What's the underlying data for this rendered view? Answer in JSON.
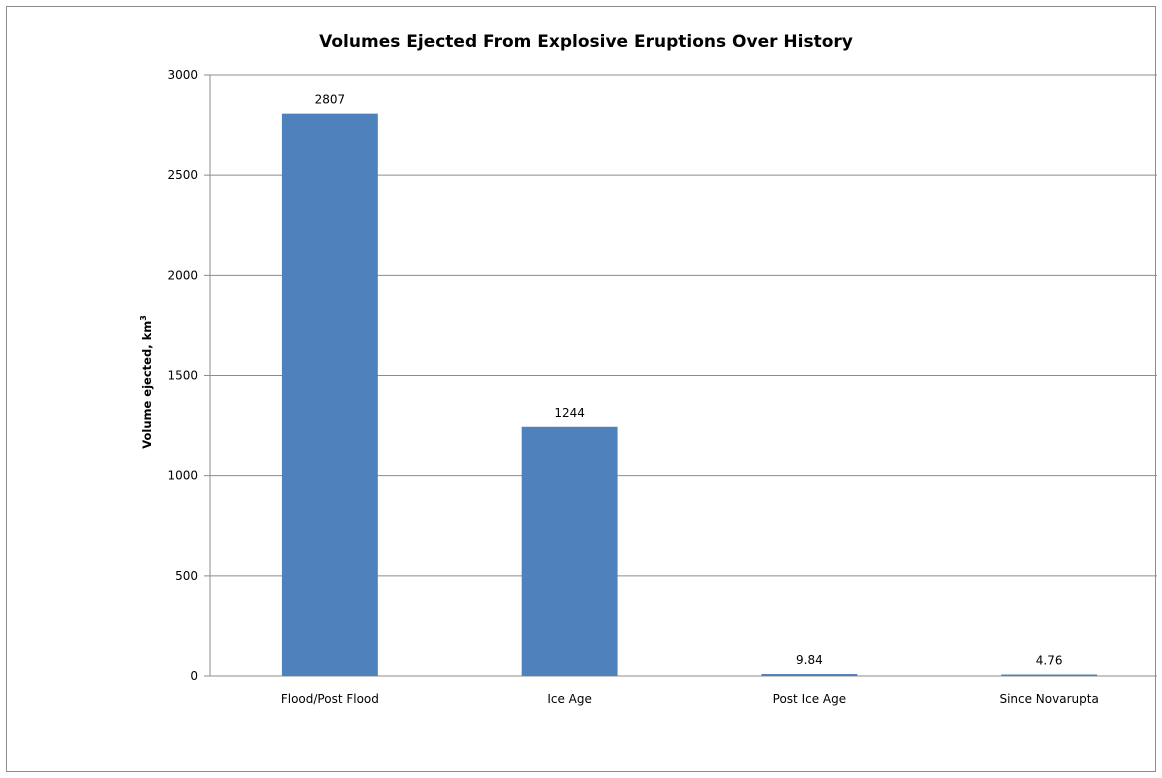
{
  "chart_data": {
    "type": "bar",
    "title": "Volumes Ejected From Explosive Eruptions Over History",
    "xlabel": "",
    "ylabel": "Volume ejected, km",
    "ylabel_superscript": "3",
    "categories": [
      "Flood/Post Flood",
      "Ice Age",
      "Post Ice Age",
      "Since Novarupta"
    ],
    "values": [
      2807,
      1244,
      9.84,
      4.76
    ],
    "data_labels": [
      "2807",
      "1244",
      "9.84",
      "4.76"
    ],
    "ylim": [
      0,
      3000
    ],
    "yticks": [
      0,
      500,
      1000,
      1500,
      2000,
      2500,
      3000
    ],
    "ytick_labels": [
      "0",
      "500",
      "1000",
      "1500",
      "2000",
      "2500",
      "3000"
    ],
    "grid": true,
    "legend": "none",
    "bar_color": "#4f81bd"
  }
}
